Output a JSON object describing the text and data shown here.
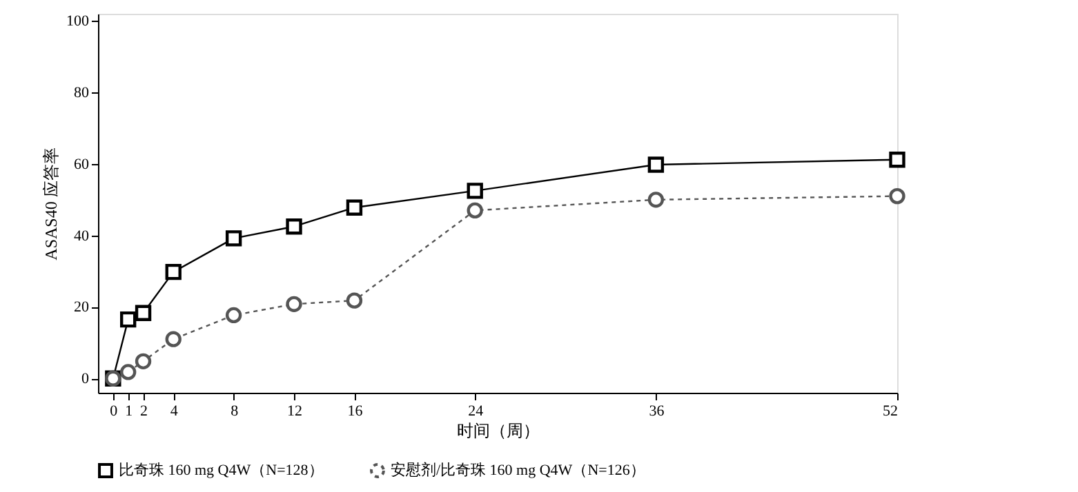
{
  "chart_data": {
    "type": "line",
    "xlabel": "时间（周）",
    "ylabel": "ASAS40 应答率",
    "x": [
      0,
      1,
      2,
      4,
      8,
      12,
      16,
      24,
      36,
      52
    ],
    "series": [
      {
        "name": "比奇珠 160 mg Q4W（N=128）",
        "color": "#000000",
        "marker": "square",
        "line_style": "solid",
        "values": [
          0,
          16.5,
          18.3,
          29.8,
          39.2,
          42.5,
          47.8,
          52.5,
          59.8,
          61.2
        ]
      },
      {
        "name": "安慰剂/比奇珠 160 mg Q4W（N=126）",
        "color": "#555555",
        "marker": "circle",
        "line_style": "dashed",
        "values": [
          0,
          1.8,
          4.8,
          11,
          17.7,
          20.8,
          21.8,
          47,
          50,
          51
        ]
      }
    ],
    "xlim": [
      -1,
      52
    ],
    "xticks": [
      0,
      1,
      2,
      4,
      8,
      12,
      16,
      24,
      36,
      52
    ],
    "ylim": [
      -4,
      102
    ],
    "yticks": [
      0,
      20,
      40,
      60,
      80,
      100
    ],
    "grid": false,
    "legend": "bottom"
  }
}
